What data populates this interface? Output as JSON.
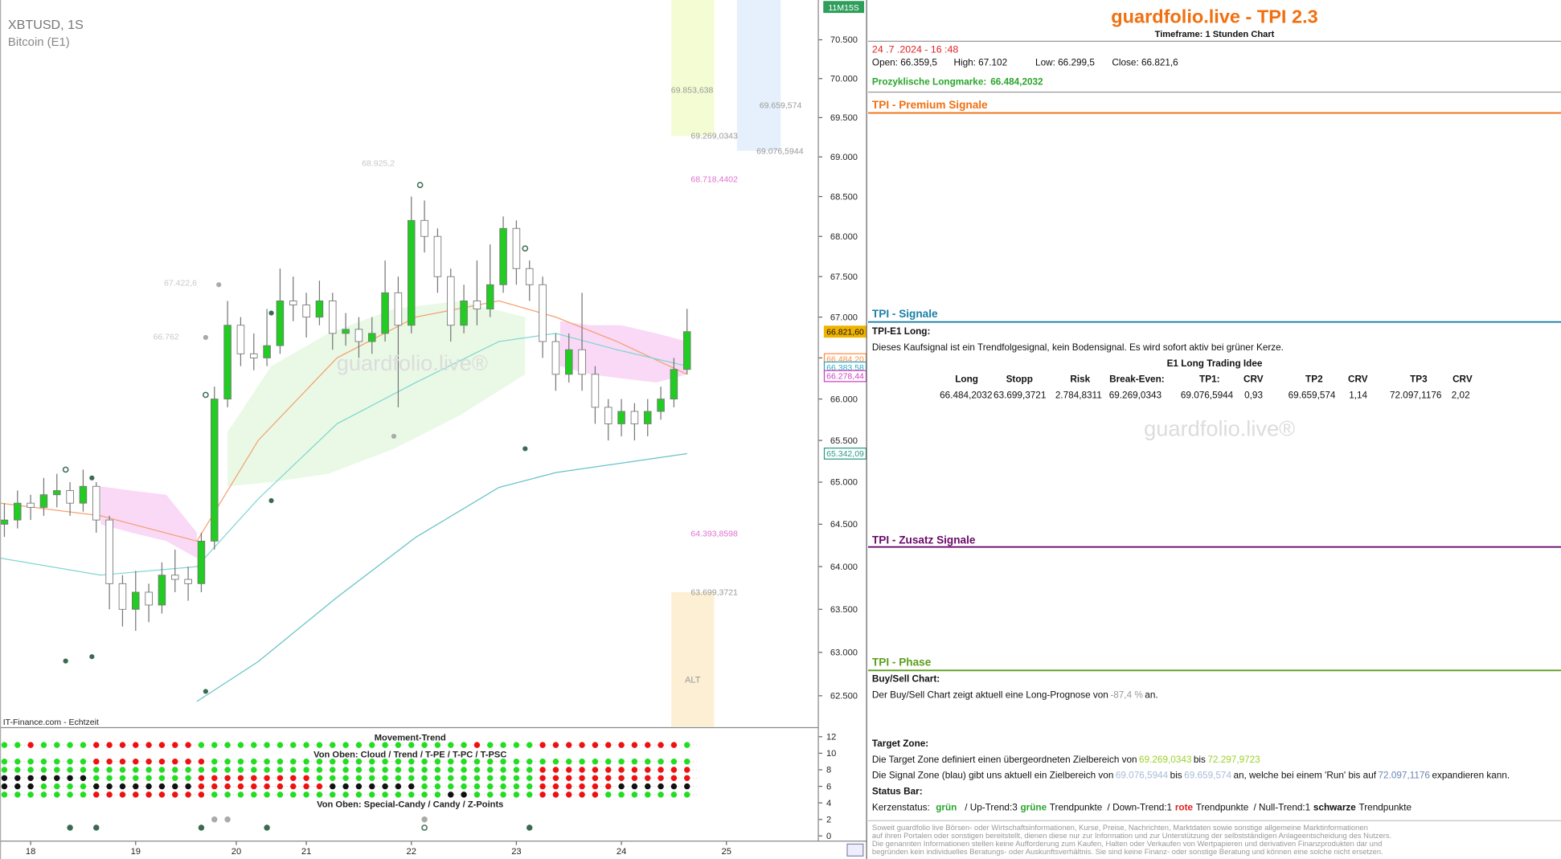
{
  "chart_data": {
    "type": "candlestick",
    "title": "XBTUSD, 1S",
    "subtitle": "Bitcoin (E1)",
    "source": "IT-Finance.com - Echtzeit",
    "watermark": "guardfolio.live®",
    "timer": "11M15S",
    "log_scale": true,
    "up_color": "#22cc22",
    "down_color": "#ffffff",
    "wick_color": "#777777",
    "xlim": [
      0,
      187
    ],
    "xticks": [
      {
        "value": 7,
        "label": "18"
      },
      {
        "value": 31,
        "label": "19"
      },
      {
        "value": 54,
        "label": "20"
      },
      {
        "value": 70,
        "label": "21"
      },
      {
        "value": 94,
        "label": "22"
      },
      {
        "value": 118,
        "label": "23"
      },
      {
        "value": 142,
        "label": "24"
      },
      {
        "value": 166,
        "label": "25"
      }
    ],
    "ylim": [
      62147,
      71017
    ],
    "yticks": [
      {
        "value": 62500,
        "label": "62.500"
      },
      {
        "value": 63000,
        "label": "63.000"
      },
      {
        "value": 63500,
        "label": "63.500"
      },
      {
        "value": 64000,
        "label": "64.000"
      },
      {
        "value": 64500,
        "label": "64.500"
      },
      {
        "value": 65000,
        "label": "65.000"
      },
      {
        "value": 65500,
        "label": "65.500"
      },
      {
        "value": 66000,
        "label": "66.000"
      },
      {
        "value": 66500,
        "label": "66.500"
      },
      {
        "value": 67000,
        "label": "67.000"
      },
      {
        "value": 67500,
        "label": "67.500"
      },
      {
        "value": 68000,
        "label": "68.000"
      },
      {
        "value": 68500,
        "label": "68.500"
      },
      {
        "value": 69000,
        "label": "69.000"
      },
      {
        "value": 69500,
        "label": "69.500"
      },
      {
        "value": 70000,
        "label": "70.000"
      },
      {
        "value": 70500,
        "label": "70.500"
      }
    ],
    "x": [
      1,
      4,
      7,
      10,
      13,
      16,
      19,
      22,
      25,
      28,
      31,
      34,
      37,
      40,
      43,
      46,
      49,
      52,
      55,
      58,
      61,
      64,
      67,
      70,
      73,
      76,
      79,
      82,
      85,
      88,
      91,
      94,
      97,
      100,
      103,
      106,
      109,
      112,
      115,
      118,
      121,
      124,
      127,
      130,
      133,
      136,
      139,
      142,
      145,
      148,
      151,
      154,
      157
    ],
    "open": [
      64500,
      64550,
      64750,
      64700,
      64850,
      64900,
      64750,
      64950,
      64550,
      63800,
      63500,
      63700,
      63550,
      63900,
      63850,
      63800,
      64300,
      66000,
      66900,
      66550,
      66500,
      66650,
      67200,
      67150,
      67000,
      67200,
      66800,
      66850,
      66700,
      66800,
      67300,
      66900,
      68200,
      68000,
      67500,
      66900,
      67200,
      67100,
      67400,
      68100,
      67600,
      67400,
      66700,
      66300,
      66600,
      66300,
      65900,
      65700,
      65850,
      65700,
      65850,
      66000,
      66359.5
    ],
    "high": [
      64750,
      64900,
      64850,
      65050,
      65100,
      65000,
      65150,
      65000,
      64600,
      63900,
      63950,
      63800,
      64050,
      64200,
      64000,
      64400,
      66150,
      67200,
      67000,
      66800,
      67100,
      67600,
      67500,
      67300,
      67450,
      67300,
      67050,
      67000,
      67000,
      67700,
      67500,
      68500,
      68450,
      68100,
      67600,
      67400,
      67700,
      67900,
      68250,
      68200,
      67700,
      67500,
      66800,
      66800,
      67300,
      66400,
      66000,
      66000,
      65950,
      66000,
      66150,
      66500,
      67102
    ],
    "low": [
      64350,
      64450,
      64550,
      64600,
      64700,
      64600,
      64650,
      64400,
      63500,
      63300,
      63250,
      63350,
      63450,
      63700,
      63600,
      63700,
      64200,
      65900,
      66400,
      66350,
      66400,
      66550,
      66950,
      66750,
      66900,
      66600,
      66650,
      66500,
      66550,
      66700,
      65900,
      66800,
      67800,
      67300,
      66700,
      66800,
      66900,
      67000,
      67300,
      67400,
      67200,
      66500,
      66100,
      66200,
      66100,
      65700,
      65500,
      65550,
      65500,
      65550,
      65750,
      65900,
      66299.5
    ],
    "close": [
      64550,
      64750,
      64700,
      64850,
      64900,
      64750,
      64950,
      64550,
      63800,
      63500,
      63700,
      63550,
      63900,
      63850,
      63800,
      64300,
      66000,
      66900,
      66550,
      66500,
      66650,
      67200,
      67150,
      67000,
      67200,
      66800,
      66850,
      66700,
      66800,
      67300,
      66900,
      68200,
      68000,
      67500,
      66900,
      67200,
      67100,
      67400,
      68100,
      67600,
      67400,
      66700,
      66300,
      66600,
      66300,
      65900,
      65700,
      65850,
      65700,
      65850,
      66000,
      66359.5,
      66821.6
    ],
    "lines": [
      {
        "color": "#f4a070",
        "x": [
          0,
          23,
          45,
          59,
          77,
          95,
          114,
          127,
          141,
          157
        ],
        "values": [
          64750,
          64600,
          64300,
          65500,
          66500,
          67000,
          67200,
          67000,
          66700,
          66300
        ]
      },
      {
        "color": "#7fd6d0",
        "x": [
          0,
          23,
          45,
          59,
          77,
          95,
          114,
          127,
          141,
          157
        ],
        "values": [
          64100,
          63900,
          64000,
          64800,
          65700,
          66200,
          66700,
          66800,
          66600,
          66400
        ]
      },
      {
        "color": "#66c2c8",
        "x": [
          0,
          23,
          45,
          59,
          77,
          95,
          114,
          127,
          141,
          157
        ],
        "values": [
          null,
          null,
          62435,
          62893,
          63640,
          64345,
          64937,
          65114,
          65220,
          65342
        ]
      }
    ],
    "clouds": [
      {
        "color": "#f8d0f4",
        "x": [
          23,
          30,
          38,
          45
        ],
        "high": [
          64950,
          64900,
          64850,
          64400
        ],
        "low": [
          64500,
          64400,
          64300,
          64100
        ]
      },
      {
        "color": "#e4f8e0",
        "x": [
          52,
          62,
          75,
          90,
          105,
          120
        ],
        "high": [
          65600,
          66400,
          66800,
          67100,
          67200,
          67000
        ],
        "low": [
          64950,
          65000,
          65100,
          65400,
          65800,
          66300
        ]
      },
      {
        "color": "#f8d0f4",
        "x": [
          128,
          135,
          142,
          150,
          157
        ],
        "high": [
          66950,
          66900,
          66900,
          66800,
          66700
        ],
        "low": [
          66400,
          66300,
          66250,
          66200,
          66300
        ]
      }
    ],
    "zones": [
      {
        "color": "#f3fcd2",
        "x": [
          153.4,
          163.2
        ],
        "ylim": [
          69269.0343,
          71017
        ]
      },
      {
        "color": "#e6f0fc",
        "x": [
          168.4,
          178.4
        ],
        "ylim": [
          69076.5944,
          71017
        ]
      },
      {
        "color": "#fcefd4",
        "x": [
          153.4,
          163.2
        ],
        "ylim": [
          62147,
          63699.3721
        ],
        "label": "ALT"
      }
    ],
    "points": [
      {
        "x": 15,
        "y": 65150,
        "color": "#3a6a50",
        "open": true
      },
      {
        "x": 21,
        "y": 65050,
        "color": "#3a6a50",
        "open": false
      },
      {
        "x": 47,
        "y": 66050,
        "color": "#3a6a50",
        "open": true
      },
      {
        "x": 50,
        "y": 67400,
        "color": "#aaaaaa",
        "open": false
      },
      {
        "x": 47,
        "y": 66750,
        "color": "#aaaaaa",
        "open": false
      },
      {
        "x": 62,
        "y": 67050,
        "color": "#3a6a50",
        "open": false
      },
      {
        "x": 96,
        "y": 68645,
        "color": "#3a6a50",
        "open": true
      },
      {
        "x": 120,
        "y": 67850,
        "color": "#3a6a50",
        "open": true
      },
      {
        "x": 15,
        "y": 62900,
        "color": "#3a6a50",
        "open": false
      },
      {
        "x": 21,
        "y": 62950,
        "color": "#3a6a50",
        "open": false
      },
      {
        "x": 47,
        "y": 62550,
        "color": "#3a6a50",
        "open": false
      },
      {
        "x": 62,
        "y": 64780,
        "color": "#3a6a50",
        "open": false
      },
      {
        "x": 90,
        "y": 65550,
        "color": "#aaaaaa",
        "open": false
      },
      {
        "x": 120,
        "y": 65400,
        "color": "#3a6a50",
        "open": false
      }
    ],
    "annotations": [
      {
        "x": 90.2,
        "value": 68925.2,
        "label": "68.925,2",
        "color": "#c8c8c8"
      },
      {
        "x": 45,
        "value": 67422.6,
        "label": "67.422,6",
        "color": "#c8c8c8"
      },
      {
        "x": 40.9,
        "value": 66762,
        "label": "66.762",
        "color": "#c8c8c8"
      },
      {
        "x": 163,
        "value": 69853.638,
        "label": "69.853,638",
        "color": "#999999"
      },
      {
        "x": 168.6,
        "value": 69269.0343,
        "label": "69.269,0343",
        "color": "#999999"
      },
      {
        "x": 183.2,
        "value": 69659.574,
        "label": "69.659,574",
        "color": "#999999"
      },
      {
        "x": 183.6,
        "value": 69076.5944,
        "label": "69.076,5944",
        "color": "#999999"
      },
      {
        "x": 168.6,
        "value": 68718.4402,
        "label": "68.718,4402",
        "color": "#e070d0"
      },
      {
        "x": 168.6,
        "value": 64393.8598,
        "label": "64.393,8598",
        "color": "#e070d0"
      },
      {
        "x": 168.6,
        "value": 63699.3721,
        "label": "63.699,3721",
        "color": "#999999"
      }
    ],
    "price_boxes": [
      {
        "value": 66821.6,
        "label": "66.821,60",
        "color": "#f0b400",
        "filled": true
      },
      {
        "value": 66484.2,
        "label": "66.484,20",
        "color": "#ff8c40",
        "filled": false
      },
      {
        "value": 66383.58,
        "label": "66.383,58",
        "color": "#30a8c0",
        "filled": false
      },
      {
        "value": 66278.44,
        "label": "66.278,44",
        "color": "#d040c0",
        "filled": false
      },
      {
        "value": 65342.09,
        "label": "65.342,09",
        "color": "#2a9a88",
        "filled": false
      }
    ],
    "indicator": {
      "title": "Movement-Trend",
      "label_top": "Von Oben: Cloud / Trend / T-PE / T-PC / T-PSC",
      "label_bottom": "Von Oben: Special-Candy / Candy / Z-Points",
      "ylim": [
        -0.5,
        12.5
      ],
      "yticks": [
        0,
        2,
        4,
        6,
        8,
        10,
        12
      ],
      "colors": {
        "g": "#22dd22",
        "r": "#ee1111",
        "k": "#111111",
        "d": "#3a6a50",
        "s": "#aaaaaa",
        "o": "#3a6a50"
      },
      "rows": [
        {
          "y": 11,
          "pattern": "ggrggggrrrrrrrrgggggggggggggggggggggrggggrrrrrrrrrrrg"
        },
        {
          "y": 9,
          "pattern": "gggggggrrrrrrrrrggggggggggggggggggggggggggggggggggggg"
        },
        {
          "y": 8,
          "pattern": "gggggggggggggggggggggggggggggggggggggggggrrrrrrrrrrrr"
        },
        {
          "y": 7,
          "pattern": "kkkkkkkggggggggrrrrrrrrrgggggggggggggggggrrrrrrrrrrrr"
        },
        {
          "y": 6,
          "pattern": "kkkggggkkkkkkkkrrrrrrrrrrkkkkkkkgggggggggrrrrrrkkkkkk"
        },
        {
          "y": 5,
          "pattern": "gggggggrrrrrrrrrggggggggggggggggggkkgggggrrrrrggggggg"
        },
        {
          "y": 2,
          "pattern": "................ss..............s...................."
        },
        {
          "y": 1,
          "pattern": ".....d.d.......d....d...........o.......d............"
        }
      ]
    }
  },
  "panel": {
    "title": "guardfolio.live - TPI 2.3",
    "timeframe": "Timeframe: 1 Stunden Chart",
    "datetime": "24 .7 .2024  - 16 :48",
    "ohlc": [
      "Open: 66.359,5",
      "High:  67.102",
      "Low:  66.299,5",
      "Close: 66.821,6"
    ],
    "longmark": {
      "label": "Prozyklische Longmarke:",
      "value": "66.484,2032"
    },
    "sections": [
      "TPI - Premium Signale",
      "TPI - Signale",
      "TPI - Zusatz Signale",
      "TPI - Phase"
    ],
    "signal": {
      "name": "TPI-E1 Long:",
      "text": "Dieses Kaufsignal ist ein Trendfolgesignal, kein Bodensignal. Es wird sofort aktiv bei grüner Kerze.",
      "idea": "E1 Long Trading Idee",
      "header": [
        "Long",
        "Stopp",
        "Risk",
        "Break-Even:",
        "TP1:",
        "CRV",
        "TP2",
        "CRV",
        "TP3",
        "CRV"
      ],
      "row": [
        "66.484,2032",
        "63.699,3721",
        "2.784,8311",
        "69.269,0343",
        "69.076,5944",
        "0,93",
        "69.659,574",
        "1,14",
        "72.097,1176",
        "2,02"
      ]
    },
    "phase": {
      "buysell_title": "Buy/Sell Chart:",
      "buysell": [
        "Der Buy/Sell Chart zeigt aktuell eine Long-Prognose von",
        "-87,4 %",
        "an."
      ],
      "target_title": "Target Zone:",
      "target": [
        "Die Target Zone definiert einen übergeordneten Zielbereich von",
        "69.269,0343",
        "bis",
        "72.297,9723"
      ],
      "signal_zone": [
        "Die Signal Zone (blau) gibt uns aktuell ein Zielbereich von",
        "69.076,5944",
        "bis",
        "69.659,574",
        "an, welche bei einem 'Run' bis auf",
        "72.097,1176",
        "expandieren kann."
      ],
      "status_title": "Status Bar:",
      "status": [
        "Kerzenstatus:",
        "grün",
        "/ Up-Trend:3",
        "grüne",
        "Trendpunkte",
        "/ Down-Trend:1",
        "rote",
        "Trendpunkte",
        "/ Null-Trend:1",
        "schwarze",
        "Trendpunkte"
      ]
    },
    "disclaimer": [
      "Soweit guardfolio live Börsen- oder Wirtschaftsinformationen, Kurse, Preise, Nachrichten, Marktdaten sowie sonstige allgemeine Marktinformationen",
      "auf ihren Portalen oder sonstigen bereitstellt, dienen diese nur zur Information und zur Unterstützung der selbstständigen Anlageentscheidung des Nutzers.",
      "Die genannten Informationen stellen keine Aufforderung zum Kaufen, Halten oder Verkaufen von Wertpapieren und derivativen Finanzprodukten dar und",
      "begründen kein individuelles Beratungs- oder Auskunftsverhältnis. Sie sind keine Finanz- oder sonstige Beratung und können eine solche nicht ersetzen."
    ]
  }
}
